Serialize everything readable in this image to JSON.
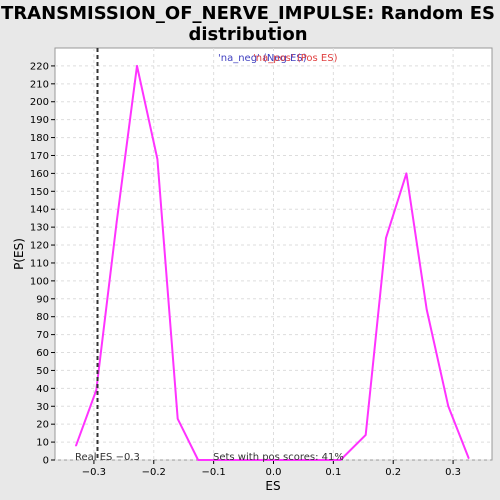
{
  "chart_data": {
    "type": "line",
    "title_lines": [
      "TRANSMISSION_OF_NERVE_IMPULSE: Random ES",
      "distribution"
    ],
    "xlabel": "ES",
    "ylabel": "P(ES)",
    "xlim": [
      -0.365,
      0.365
    ],
    "ylim": [
      0,
      230
    ],
    "x_ticks": [
      -0.3,
      -0.2,
      -0.1,
      0.0,
      0.1,
      0.2,
      0.3
    ],
    "x_tick_labels": [
      "−0.3",
      "−0.2",
      "−0.1",
      "0.0",
      "0.1",
      "0.2",
      "0.3"
    ],
    "y_ticks": [
      0,
      10,
      20,
      30,
      40,
      50,
      60,
      70,
      80,
      90,
      100,
      110,
      120,
      130,
      140,
      150,
      160,
      170,
      180,
      190,
      200,
      210,
      220
    ],
    "grid": true,
    "legend": {
      "placement": "top-center",
      "neg_label": "'na_neg' (Neg ES)",
      "pos_label": "'na_pos' (Pos ES)"
    },
    "series": [
      {
        "color": "#ff33ff",
        "x": [
          -0.33,
          -0.296,
          -0.262,
          -0.228,
          -0.194,
          -0.16,
          -0.126,
          -0.092,
          -0.058,
          -0.024,
          0.01,
          0.044,
          0.078,
          0.112,
          0.154,
          0.188,
          0.222,
          0.256,
          0.292,
          0.326
        ],
        "y": [
          8,
          39,
          133,
          220,
          168,
          23,
          0,
          0,
          0,
          0,
          0,
          0,
          0,
          0,
          14,
          124,
          160,
          84,
          30,
          1
        ]
      }
    ],
    "real_es": {
      "value": -0.294,
      "label": "Real ES −0.3"
    },
    "annotation": "Sets with pos scores: 41%"
  }
}
